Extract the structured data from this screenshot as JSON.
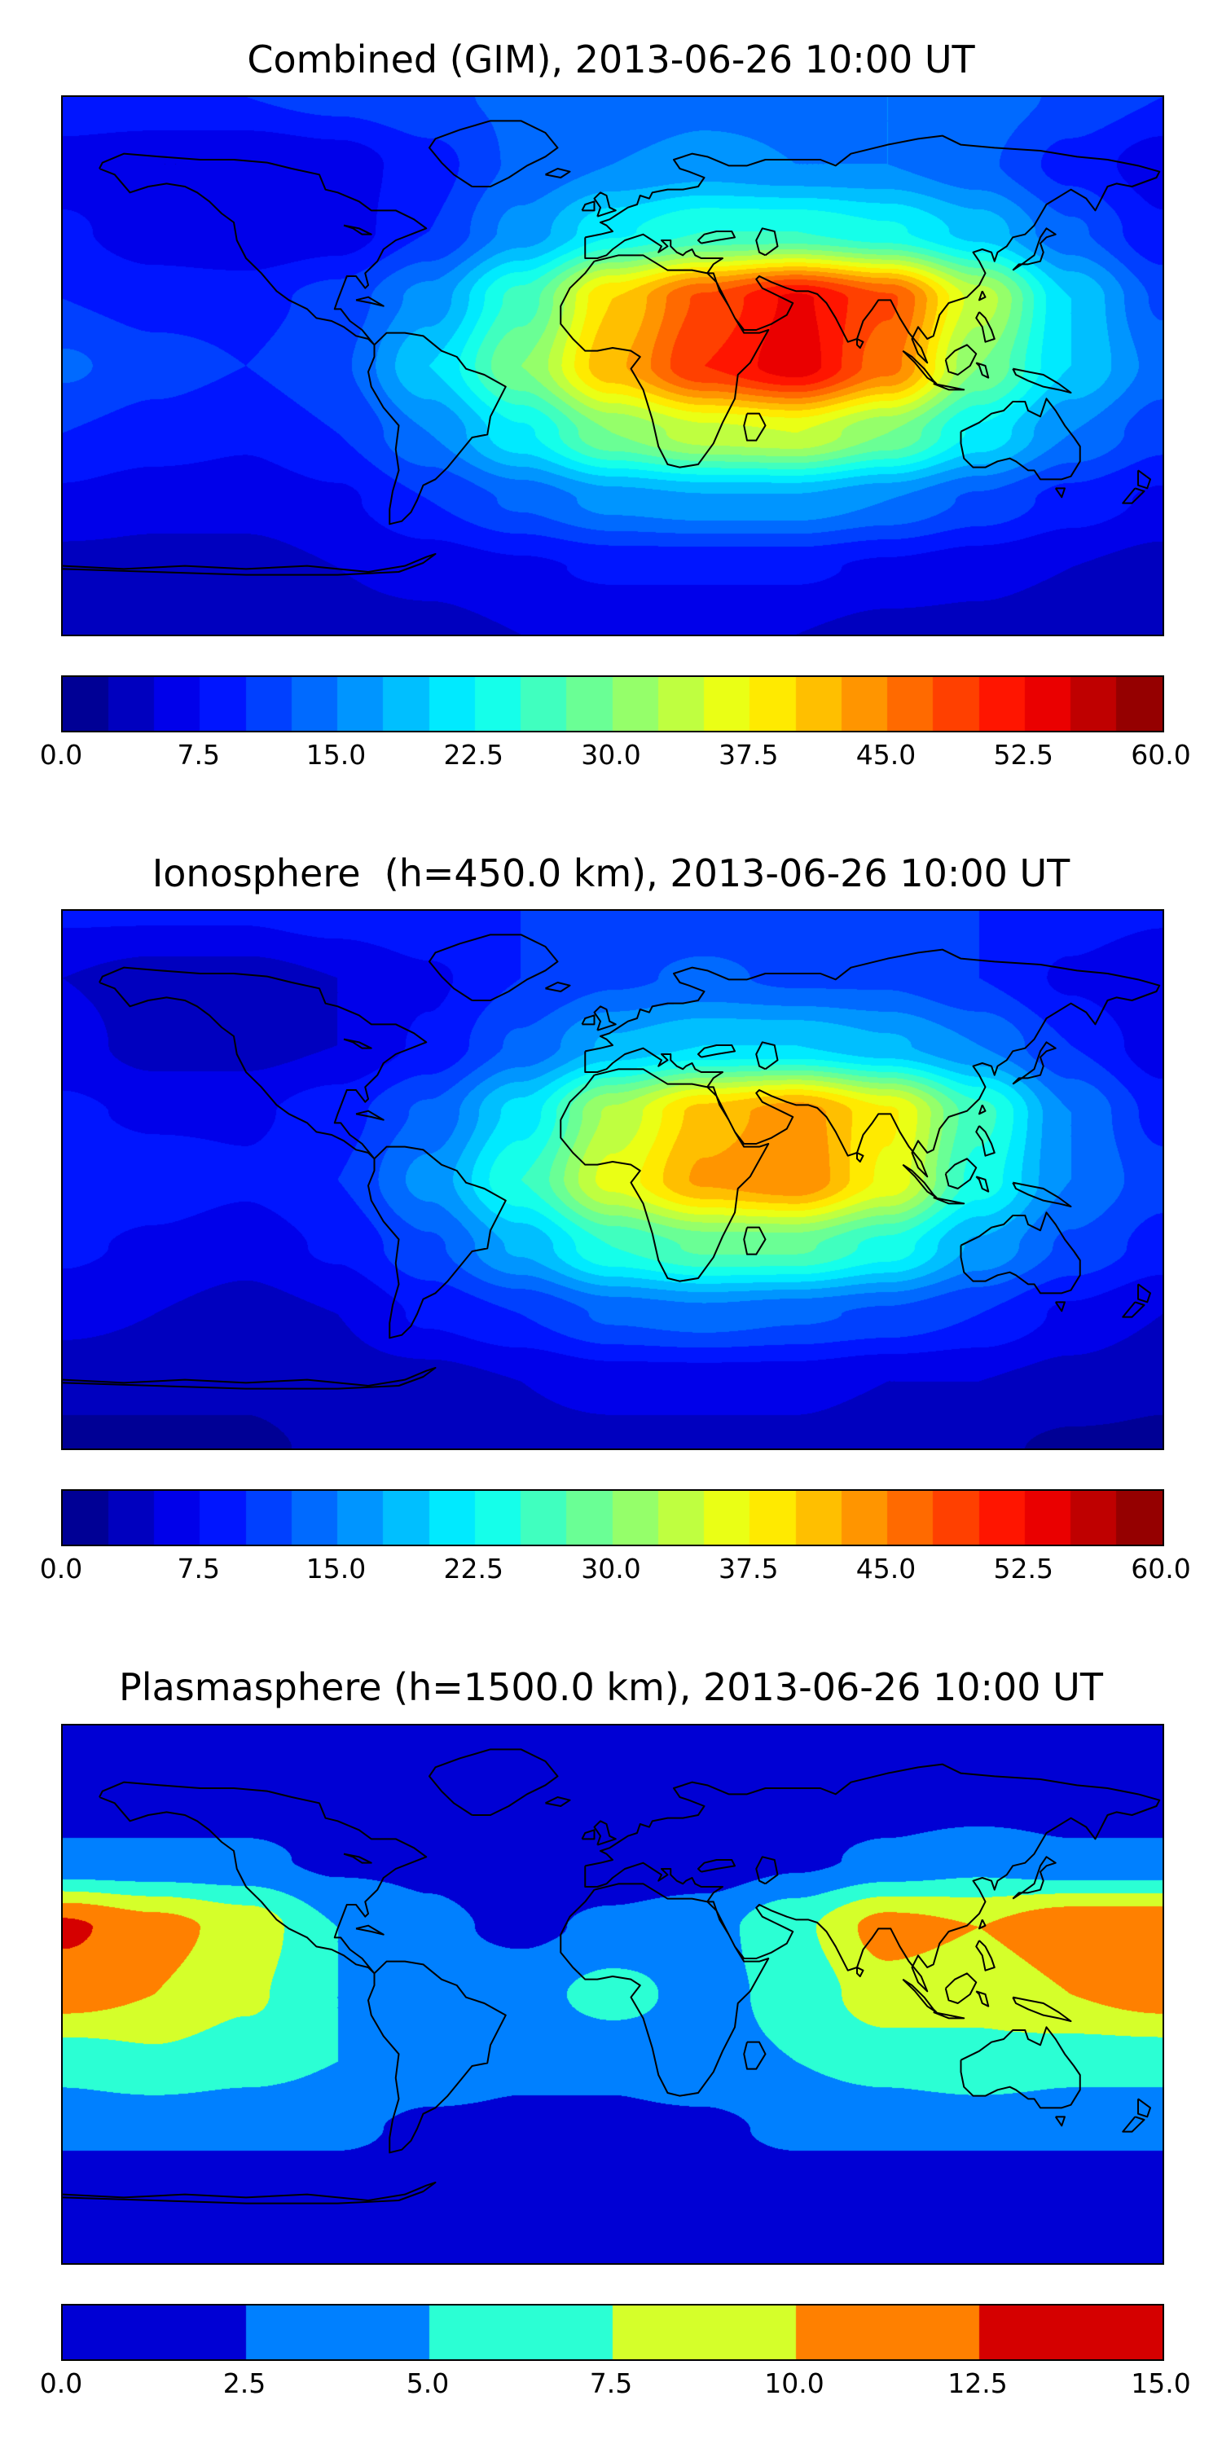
{
  "page": {
    "background": "#ffffff",
    "text_color": "#000000"
  },
  "chart_data": [
    {
      "type": "heatmap",
      "subtype": "filled-contour-world-map",
      "title": "Combined (GIM), 2013-06-26 10:00 UT",
      "colormap": "jet",
      "projection": "equirectangular",
      "lon_range": [
        -180,
        180
      ],
      "lat_range": [
        -90,
        90
      ],
      "colorbar": {
        "orientation": "horizontal",
        "min": 0.0,
        "max": 60.0,
        "level_step": 2.5,
        "tick_labels": [
          "0.0",
          "7.5",
          "15.0",
          "22.5",
          "30.0",
          "37.5",
          "45.0",
          "52.5",
          "60.0"
        ]
      },
      "grid": {
        "lons": [
          -180,
          -150,
          -120,
          -90,
          -60,
          -30,
          0,
          30,
          60,
          90,
          120,
          150,
          180
        ],
        "lats": [
          90,
          67.5,
          45,
          22.5,
          0,
          -22.5,
          -45,
          -67.5,
          -90
        ],
        "values": [
          [
            10,
            10,
            10,
            11,
            12,
            13,
            13,
            14,
            14,
            15,
            14,
            12,
            10
          ],
          [
            6,
            5,
            5,
            6,
            9,
            13,
            15,
            16,
            15,
            15,
            13,
            9,
            6
          ],
          [
            8,
            6,
            5,
            6,
            10,
            16,
            22,
            25,
            25,
            23,
            19,
            13,
            8
          ],
          [
            10,
            9,
            9,
            11,
            16,
            26,
            40,
            48,
            53,
            48,
            34,
            20,
            12
          ],
          [
            13,
            11,
            10,
            12,
            20,
            30,
            42,
            50,
            54,
            46,
            30,
            20,
            14
          ],
          [
            10,
            9,
            8,
            10,
            15,
            22,
            30,
            34,
            35,
            30,
            22,
            15,
            11
          ],
          [
            7,
            6,
            6,
            7,
            10,
            13,
            16,
            17,
            17,
            15,
            12,
            9,
            7
          ],
          [
            4,
            4,
            4,
            5,
            6,
            7,
            8,
            8,
            8,
            7,
            6,
            5,
            4
          ],
          [
            3,
            3,
            3,
            4,
            4,
            5,
            5,
            5,
            5,
            4,
            4,
            3,
            3
          ]
        ]
      }
    },
    {
      "type": "heatmap",
      "subtype": "filled-contour-world-map",
      "title": "Ionosphere  (h=450.0 km), 2013-06-26 10:00 UT",
      "colormap": "jet",
      "projection": "equirectangular",
      "lon_range": [
        -180,
        180
      ],
      "lat_range": [
        -90,
        90
      ],
      "colorbar": {
        "orientation": "horizontal",
        "min": 0.0,
        "max": 60.0,
        "level_step": 2.5,
        "tick_labels": [
          "0.0",
          "7.5",
          "15.0",
          "22.5",
          "30.0",
          "37.5",
          "45.0",
          "52.5",
          "60.0"
        ]
      },
      "grid": {
        "lons": [
          -180,
          -150,
          -120,
          -90,
          -60,
          -30,
          0,
          30,
          60,
          90,
          120,
          150,
          180
        ],
        "lats": [
          90,
          67.5,
          45,
          22.5,
          0,
          -22.5,
          -45,
          -67.5,
          -90
        ],
        "values": [
          [
            8,
            8,
            8,
            9,
            10,
            10,
            11,
            11,
            11,
            11,
            10,
            9,
            8
          ],
          [
            5,
            4,
            4,
            5,
            7,
            10,
            12,
            13,
            12,
            12,
            10,
            7,
            5
          ],
          [
            6,
            4,
            4,
            5,
            8,
            13,
            18,
            20,
            20,
            18,
            15,
            10,
            6
          ],
          [
            8,
            7,
            7,
            9,
            13,
            21,
            33,
            41,
            44,
            38,
            26,
            15,
            9
          ],
          [
            10,
            9,
            8,
            10,
            16,
            25,
            36,
            43,
            45,
            37,
            24,
            15,
            11
          ],
          [
            8,
            7,
            6,
            8,
            12,
            18,
            25,
            28,
            28,
            24,
            17,
            12,
            9
          ],
          [
            6,
            5,
            4,
            5,
            8,
            10,
            13,
            14,
            13,
            12,
            10,
            7,
            5
          ],
          [
            3,
            3,
            3,
            4,
            4,
            5,
            6,
            6,
            6,
            5,
            5,
            4,
            3
          ],
          [
            2,
            2,
            2,
            3,
            3,
            4,
            4,
            4,
            4,
            3,
            3,
            2,
            2
          ]
        ]
      }
    },
    {
      "type": "heatmap",
      "subtype": "filled-contour-world-map",
      "title": "Plasmasphere (h=1500.0 km), 2013-06-26 10:00 UT",
      "colormap": "jet",
      "projection": "equirectangular",
      "lon_range": [
        -180,
        180
      ],
      "lat_range": [
        -90,
        90
      ],
      "colorbar": {
        "orientation": "horizontal",
        "min": 0.0,
        "max": 15.0,
        "level_step": 2.5,
        "tick_labels": [
          "0.0",
          "2.5",
          "5.0",
          "7.5",
          "10.0",
          "12.5",
          "15.0"
        ]
      },
      "grid": {
        "lons": [
          -180,
          -150,
          -120,
          -90,
          -60,
          -30,
          0,
          30,
          60,
          90,
          120,
          150,
          180
        ],
        "lats": [
          90,
          67.5,
          45,
          22.5,
          0,
          -22.5,
          -45,
          -67.5,
          -90
        ],
        "values": [
          [
            1,
            1,
            1,
            1,
            1,
            1,
            1,
            1,
            1,
            1,
            1,
            1,
            1
          ],
          [
            1,
            1,
            1,
            1,
            1,
            1,
            1,
            1,
            1,
            1,
            1,
            1,
            1
          ],
          [
            3,
            3,
            3,
            2,
            2,
            1,
            1,
            1,
            2,
            3,
            4,
            3,
            3
          ],
          [
            13,
            11,
            9,
            5,
            3,
            2,
            3,
            4,
            7,
            11,
            10,
            12,
            12
          ],
          [
            11,
            10,
            8,
            5,
            4,
            4,
            6,
            4,
            6,
            9,
            8,
            10,
            11
          ],
          [
            6,
            7,
            6,
            5,
            4,
            3,
            3,
            4,
            5,
            6,
            7,
            6,
            6
          ],
          [
            3,
            3,
            3,
            3,
            2,
            2,
            2,
            2,
            3,
            3,
            3,
            3,
            3
          ],
          [
            1,
            1,
            1,
            1,
            1,
            1,
            1,
            1,
            1,
            1,
            1,
            1,
            1
          ],
          [
            1,
            1,
            1,
            1,
            1,
            1,
            1,
            1,
            1,
            1,
            1,
            1,
            1
          ]
        ]
      }
    }
  ]
}
